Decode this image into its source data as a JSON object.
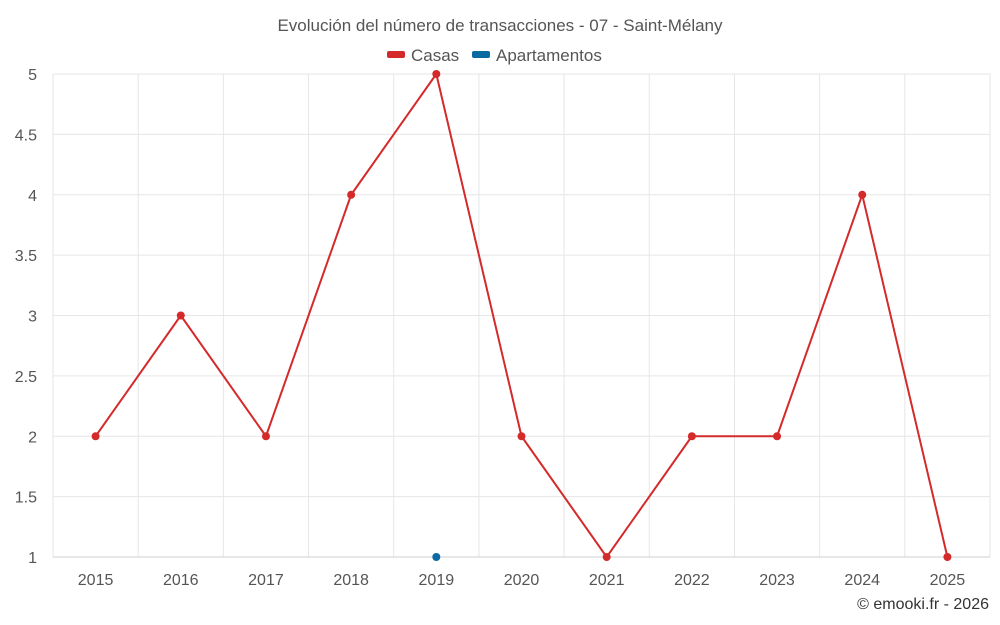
{
  "chart_data": {
    "type": "line",
    "title": "Evolución del número de transacciones - 07 - Saint-Mélany",
    "categories": [
      "2015",
      "2016",
      "2017",
      "2018",
      "2019",
      "2020",
      "2021",
      "2022",
      "2023",
      "2024",
      "2025"
    ],
    "series": [
      {
        "name": "Casas",
        "color": "#d42a2a",
        "values": [
          2,
          3,
          2,
          4,
          5,
          2,
          1,
          2,
          2,
          4,
          1
        ]
      },
      {
        "name": "Apartamentos",
        "color": "#0b6aa2",
        "values": [
          null,
          null,
          null,
          null,
          1,
          null,
          null,
          null,
          null,
          null,
          null
        ]
      }
    ],
    "y_ticks": [
      "1",
      "1.5",
      "2",
      "2.5",
      "3",
      "3.5",
      "4",
      "4.5",
      "5"
    ],
    "ylim": [
      1,
      5
    ],
    "xlabel": "",
    "ylabel": "",
    "grid": true,
    "legend_position": "top-center"
  },
  "credit": "© emooki.fr - 2026"
}
